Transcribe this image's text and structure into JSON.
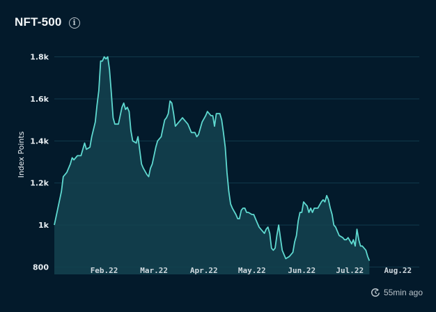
{
  "header": {
    "title": "NFT-500",
    "info_icon": "info-icon"
  },
  "footer": {
    "updated_label": "55min ago",
    "refresh_icon": "refresh-icon"
  },
  "colors": {
    "background": "#031a2b",
    "line": "#5fd9d0",
    "area": "#144350",
    "grid": "#123a4c"
  },
  "chart_data": {
    "type": "area",
    "title": "NFT-500",
    "xlabel": "",
    "ylabel": "Index Points",
    "ylim": [
      765,
      1865
    ],
    "y_ticks": [
      {
        "value": 800,
        "label": "800"
      },
      {
        "value": 1000,
        "label": "1k"
      },
      {
        "value": 1200,
        "label": "1.2k"
      },
      {
        "value": 1400,
        "label": "1.4k"
      },
      {
        "value": 1600,
        "label": "1.6k"
      },
      {
        "value": 1800,
        "label": "1.8k"
      }
    ],
    "x_ticks": [
      {
        "value": 28,
        "label": "Feb.22"
      },
      {
        "value": 56,
        "label": "Mar.22"
      },
      {
        "value": 84,
        "label": "Apr.22"
      },
      {
        "value": 111,
        "label": "May.22"
      },
      {
        "value": 139,
        "label": "Jun.22"
      },
      {
        "value": 166,
        "label": "Jul.22"
      },
      {
        "value": 193,
        "label": "Aug.22"
      }
    ],
    "xlim": [
      0,
      205
    ],
    "grid": true,
    "series": [
      {
        "values": [
          [
            0,
            1000
          ],
          [
            2,
            1080
          ],
          [
            4,
            1160
          ],
          [
            5,
            1230
          ],
          [
            7,
            1250
          ],
          [
            9,
            1290
          ],
          [
            10,
            1320
          ],
          [
            11,
            1310
          ],
          [
            13,
            1330
          ],
          [
            15,
            1330
          ],
          [
            17,
            1390
          ],
          [
            18,
            1360
          ],
          [
            20,
            1370
          ],
          [
            21,
            1420
          ],
          [
            23,
            1490
          ],
          [
            24,
            1570
          ],
          [
            25,
            1640
          ],
          [
            26,
            1780
          ],
          [
            27,
            1780
          ],
          [
            28,
            1800
          ],
          [
            29,
            1790
          ],
          [
            30,
            1800
          ],
          [
            31,
            1740
          ],
          [
            32,
            1630
          ],
          [
            33,
            1510
          ],
          [
            34,
            1480
          ],
          [
            36,
            1480
          ],
          [
            38,
            1560
          ],
          [
            39,
            1580
          ],
          [
            40,
            1550
          ],
          [
            41,
            1560
          ],
          [
            42,
            1540
          ],
          [
            43,
            1450
          ],
          [
            44,
            1400
          ],
          [
            46,
            1390
          ],
          [
            47,
            1420
          ],
          [
            49,
            1290
          ],
          [
            50,
            1270
          ],
          [
            52,
            1240
          ],
          [
            53,
            1230
          ],
          [
            54,
            1270
          ],
          [
            55,
            1290
          ],
          [
            57,
            1370
          ],
          [
            58,
            1400
          ],
          [
            60,
            1420
          ],
          [
            61,
            1460
          ],
          [
            62,
            1500
          ],
          [
            63,
            1510
          ],
          [
            64,
            1530
          ],
          [
            65,
            1590
          ],
          [
            66,
            1580
          ],
          [
            67,
            1530
          ],
          [
            68,
            1470
          ],
          [
            70,
            1490
          ],
          [
            72,
            1510
          ],
          [
            73,
            1500
          ],
          [
            75,
            1480
          ],
          [
            77,
            1440
          ],
          [
            79,
            1440
          ],
          [
            80,
            1420
          ],
          [
            81,
            1430
          ],
          [
            83,
            1490
          ],
          [
            85,
            1520
          ],
          [
            86,
            1540
          ],
          [
            88,
            1520
          ],
          [
            89,
            1520
          ],
          [
            90,
            1470
          ],
          [
            91,
            1530
          ],
          [
            93,
            1530
          ],
          [
            94,
            1500
          ],
          [
            95,
            1440
          ],
          [
            96,
            1370
          ],
          [
            97,
            1250
          ],
          [
            98,
            1160
          ],
          [
            99,
            1100
          ],
          [
            100,
            1080
          ],
          [
            102,
            1050
          ],
          [
            103,
            1030
          ],
          [
            104,
            1030
          ],
          [
            105,
            1070
          ],
          [
            106,
            1080
          ],
          [
            107,
            1080
          ],
          [
            108,
            1060
          ],
          [
            109,
            1060
          ],
          [
            111,
            1050
          ],
          [
            112,
            1050
          ],
          [
            113,
            1030
          ],
          [
            114,
            1010
          ],
          [
            115,
            990
          ],
          [
            116,
            980
          ],
          [
            118,
            960
          ],
          [
            119,
            980
          ],
          [
            120,
            990
          ],
          [
            121,
            960
          ],
          [
            122,
            890
          ],
          [
            123,
            880
          ],
          [
            124,
            890
          ],
          [
            125,
            950
          ],
          [
            126,
            1000
          ],
          [
            127,
            940
          ],
          [
            128,
            880
          ],
          [
            129,
            860
          ],
          [
            130,
            840
          ],
          [
            132,
            850
          ],
          [
            134,
            870
          ],
          [
            135,
            920
          ],
          [
            136,
            950
          ],
          [
            137,
            1020
          ],
          [
            138,
            1060
          ],
          [
            139,
            1060
          ],
          [
            140,
            1110
          ],
          [
            141,
            1100
          ],
          [
            142,
            1090
          ],
          [
            143,
            1060
          ],
          [
            144,
            1080
          ],
          [
            145,
            1060
          ],
          [
            146,
            1080
          ],
          [
            148,
            1080
          ],
          [
            150,
            1110
          ],
          [
            151,
            1120
          ],
          [
            152,
            1110
          ],
          [
            153,
            1140
          ],
          [
            154,
            1120
          ],
          [
            155,
            1080
          ],
          [
            156,
            1050
          ],
          [
            157,
            1000
          ],
          [
            158,
            990
          ],
          [
            159,
            970
          ],
          [
            160,
            950
          ],
          [
            162,
            940
          ],
          [
            163,
            930
          ],
          [
            164,
            930
          ],
          [
            165,
            940
          ],
          [
            167,
            910
          ],
          [
            168,
            930
          ],
          [
            169,
            900
          ],
          [
            170,
            980
          ],
          [
            171,
            930
          ],
          [
            172,
            900
          ],
          [
            173,
            900
          ],
          [
            175,
            880
          ],
          [
            176,
            850
          ],
          [
            177,
            830
          ]
        ]
      }
    ]
  }
}
